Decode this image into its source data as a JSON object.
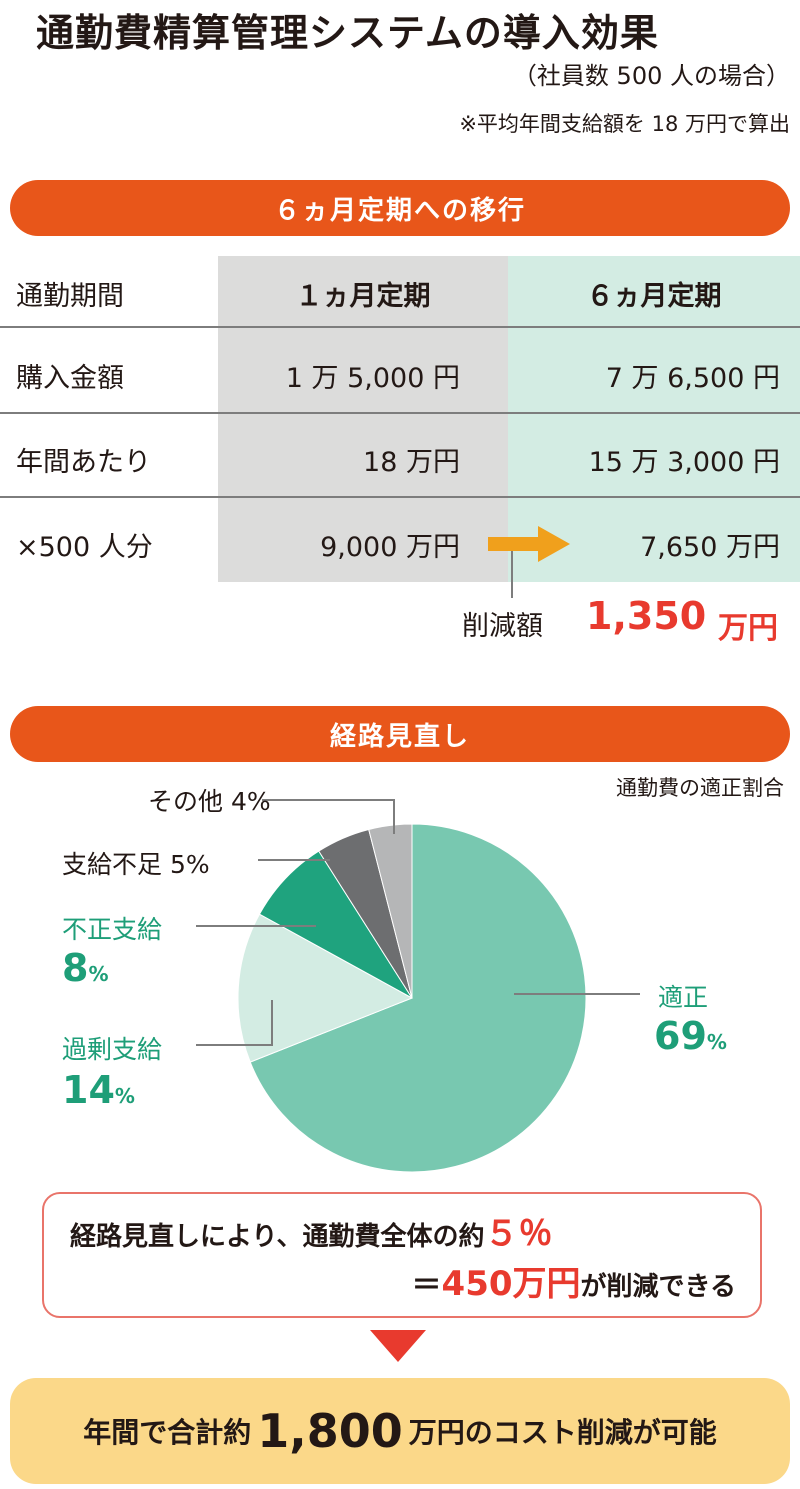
{
  "header": {
    "title": "通勤費精算管理システムの導入効果",
    "subtitle": "（社員数 500 人の場合）",
    "note": "※平均年間支給額を 18 万円で算出"
  },
  "section1": {
    "banner": "６ヵ月定期への移行",
    "header_row": {
      "label": "通勤期間",
      "col1": "１ヵ月定期",
      "col2": "６ヵ月定期"
    },
    "rows": [
      {
        "label": "購入金額",
        "col1": "1 万 5,000 円",
        "col2": "7 万 6,500 円"
      },
      {
        "label": "年間あたり",
        "col1": "18 万円",
        "col2": "15 万 3,000 円"
      },
      {
        "label": "×500 人分",
        "col1": "9,000 万円",
        "col2": "7,650 万円"
      }
    ],
    "reduction_label": "削減額",
    "reduction_value": "1,350",
    "reduction_unit": "万円"
  },
  "section2": {
    "banner": "経路見直し",
    "chart_caption": "通勤費の適正割合"
  },
  "chart_data": {
    "type": "pie",
    "title": "通勤費の適正割合",
    "slices": [
      {
        "name": "適正",
        "value": 69,
        "color": "#78c8b0"
      },
      {
        "name": "過剰支給",
        "value": 14,
        "color": "#d3ece3"
      },
      {
        "name": "不正支給",
        "value": 8,
        "color": "#1fa37e"
      },
      {
        "name": "支給不足",
        "value": 5,
        "color": "#6d6e70"
      },
      {
        "name": "その他",
        "value": 4,
        "color": "#b5b6b7"
      }
    ],
    "labels": {
      "other": "その他 4%",
      "shortage": "支給不足 5%",
      "fraud_name": "不正支給",
      "fraud_num": "8",
      "excess_name": "過剰支給",
      "excess_num": "14",
      "proper_name": "適正",
      "proper_num": "69",
      "percent_sign": "%"
    }
  },
  "callout": {
    "line1_text": "経路見直しにより、通勤費全体の約",
    "line1_value": "５％",
    "line2_prefix": "＝",
    "line2_value": "450万円",
    "line2_suffix": "が削減できる"
  },
  "summary": {
    "prefix": "年間で合計約",
    "value": "1,800",
    "suffix": "万円のコスト削減が可能"
  },
  "colors": {
    "orange": "#e8561a",
    "red": "#e83a2e",
    "teal_text": "#1e9e78",
    "arrow": "#f0a01c",
    "summary_bg": "#fbd889"
  }
}
